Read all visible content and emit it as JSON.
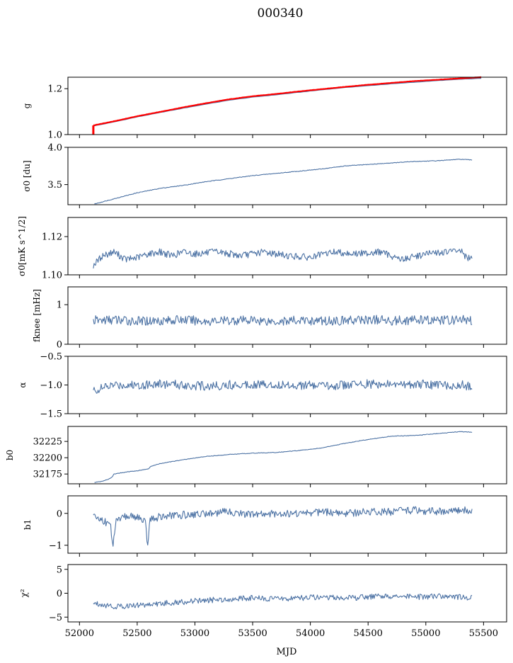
{
  "figure": {
    "title": "000340",
    "xlabel": "MJD"
  },
  "colors": {
    "series": "#4c72a4",
    "highlight": "#ff0000"
  },
  "chart_data": [
    {
      "type": "line",
      "ylabel": "g",
      "xlim": [
        51900,
        55700
      ],
      "ylim": [
        1.0,
        1.25
      ],
      "yticks": [
        1.0,
        1.2
      ],
      "ytick_labels": [
        "1.0",
        "1.2"
      ],
      "series": [
        {
          "role": "main",
          "color": "#4c72a4",
          "x": [
            52120,
            52300,
            52500,
            52700,
            52900,
            53100,
            53300,
            53500,
            53700,
            53900,
            54100,
            54300,
            54500,
            54700,
            54900,
            55100,
            55300,
            55480
          ],
          "y": [
            1.037,
            1.055,
            1.077,
            1.096,
            1.115,
            1.133,
            1.15,
            1.163,
            1.173,
            1.184,
            1.195,
            1.205,
            1.213,
            1.221,
            1.228,
            1.235,
            1.241,
            1.245
          ]
        },
        {
          "role": "highlight",
          "color": "#ff0000",
          "x": [
            52120,
            52300,
            52500,
            52700,
            52900,
            53100,
            53300,
            53500,
            53700,
            53900,
            54100,
            54300,
            54500,
            54700,
            54900,
            55100,
            55300,
            55480
          ],
          "y": [
            1.04,
            1.058,
            1.08,
            1.099,
            1.119,
            1.137,
            1.154,
            1.167,
            1.177,
            1.188,
            1.198,
            1.208,
            1.217,
            1.225,
            1.233,
            1.239,
            1.245,
            1.25
          ]
        }
      ]
    },
    {
      "type": "line",
      "ylabel": "σ0 [du]",
      "xlim": [
        51900,
        55700
      ],
      "ylim": [
        3.23,
        4.0
      ],
      "yticks": [
        3.5,
        4.0
      ],
      "ytick_labels": [
        "3.5",
        "4.0"
      ],
      "series": [
        {
          "color": "#4c72a4",
          "x": [
            52130,
            52300,
            52500,
            52700,
            52900,
            53100,
            53300,
            53500,
            53700,
            53900,
            54100,
            54300,
            54500,
            54700,
            54900,
            55100,
            55300,
            55400
          ],
          "y": [
            3.24,
            3.31,
            3.39,
            3.45,
            3.49,
            3.54,
            3.58,
            3.62,
            3.65,
            3.68,
            3.71,
            3.75,
            3.77,
            3.79,
            3.81,
            3.82,
            3.84,
            3.83
          ]
        }
      ]
    },
    {
      "type": "line",
      "ylabel": "σ0[mK s^1/2]",
      "xlim": [
        51900,
        55700
      ],
      "ylim": [
        1.1,
        1.13
      ],
      "yticks": [
        1.1,
        1.12
      ],
      "ytick_labels": [
        "1.10",
        "1.12"
      ],
      "series": [
        {
          "color": "#4c72a4",
          "x": [
            52120,
            52200,
            52300,
            52400,
            52500,
            52600,
            52700,
            52800,
            52900,
            53000,
            53200,
            53400,
            53600,
            53800,
            54000,
            54200,
            54400,
            54600,
            54800,
            55000,
            55200,
            55300,
            55350,
            55400
          ],
          "y": [
            1.105,
            1.11,
            1.112,
            1.108,
            1.109,
            1.111,
            1.112,
            1.11,
            1.112,
            1.111,
            1.112,
            1.11,
            1.112,
            1.11,
            1.109,
            1.112,
            1.111,
            1.112,
            1.108,
            1.111,
            1.112,
            1.113,
            1.109,
            1.108
          ]
        }
      ]
    },
    {
      "type": "line",
      "ylabel": "fknee [mHz]",
      "xlim": [
        51900,
        55700
      ],
      "ylim": [
        0,
        1.45
      ],
      "yticks": [
        0,
        1
      ],
      "ytick_labels": [
        "0",
        "1"
      ],
      "series": [
        {
          "color": "#4c72a4",
          "x": [
            52120,
            52300,
            52500,
            52700,
            52900,
            53100,
            53300,
            53500,
            53700,
            53900,
            54100,
            54300,
            54500,
            54700,
            54900,
            55100,
            55300,
            55400
          ],
          "y": [
            0.6,
            0.62,
            0.58,
            0.6,
            0.62,
            0.58,
            0.6,
            0.61,
            0.58,
            0.6,
            0.59,
            0.6,
            0.62,
            0.6,
            0.61,
            0.6,
            0.62,
            0.6
          ]
        }
      ]
    },
    {
      "type": "line",
      "ylabel": "α",
      "xlim": [
        51900,
        55700
      ],
      "ylim": [
        -1.5,
        -0.5
      ],
      "yticks": [
        -1.5,
        -1.0,
        -0.5
      ],
      "ytick_labels": [
        "−1.5",
        "−1.0",
        "−0.5"
      ],
      "series": [
        {
          "color": "#4c72a4",
          "x": [
            52120,
            52300,
            52500,
            52700,
            52900,
            53100,
            53300,
            53500,
            53700,
            53900,
            54100,
            54300,
            54500,
            54700,
            54900,
            55100,
            55300,
            55400
          ],
          "y": [
            -1.1,
            -1.0,
            -1.0,
            -0.98,
            -1.0,
            -1.02,
            -1.0,
            -0.98,
            -1.0,
            -1.0,
            -1.02,
            -1.0,
            -0.98,
            -1.0,
            -0.98,
            -1.0,
            -1.0,
            -1.02
          ]
        }
      ]
    },
    {
      "type": "line",
      "ylabel": "b0",
      "xlim": [
        51900,
        55700
      ],
      "ylim": [
        32160,
        32248
      ],
      "yticks": [
        32175,
        32200,
        32225
      ],
      "ytick_labels": [
        "32175",
        "32200",
        "32225"
      ],
      "series": [
        {
          "color": "#4c72a4",
          "x": [
            52130,
            52200,
            52250,
            52280,
            52300,
            52400,
            52500,
            52600,
            52620,
            52700,
            52900,
            53100,
            53300,
            53500,
            53700,
            53900,
            54100,
            54300,
            54500,
            54700,
            54900,
            55100,
            55300,
            55400
          ],
          "y": [
            32162,
            32164,
            32167,
            32170,
            32175,
            32178,
            32180,
            32183,
            32187,
            32191,
            32197,
            32202,
            32205,
            32207,
            32208,
            32211,
            32215,
            32222,
            32228,
            32233,
            32234,
            32237,
            32240,
            32239
          ]
        }
      ]
    },
    {
      "type": "line",
      "ylabel": "b1",
      "xlim": [
        51900,
        55700
      ],
      "ylim": [
        -1.25,
        0.55
      ],
      "yticks": [
        -1,
        0
      ],
      "ytick_labels": [
        "−1",
        "0"
      ],
      "series": [
        {
          "color": "#4c72a4",
          "x": [
            52120,
            52200,
            52270,
            52290,
            52310,
            52400,
            52500,
            52570,
            52590,
            52610,
            52700,
            52900,
            53100,
            53300,
            53500,
            53700,
            53900,
            54100,
            54300,
            54500,
            54700,
            54900,
            55100,
            55300,
            55400
          ],
          "y": [
            -0.1,
            -0.2,
            -0.4,
            -1.1,
            -0.3,
            -0.1,
            -0.1,
            -0.3,
            -1.0,
            -0.2,
            -0.1,
            -0.05,
            0.0,
            0.05,
            -0.05,
            0.0,
            0.0,
            0.05,
            0.0,
            0.05,
            0.05,
            0.1,
            0.05,
            0.1,
            0.1
          ]
        }
      ]
    },
    {
      "type": "line",
      "ylabel": "χ²",
      "xlim": [
        51900,
        55700
      ],
      "ylim": [
        -6,
        6
      ],
      "yticks": [
        -5,
        0,
        5
      ],
      "ytick_labels": [
        "−5",
        "0",
        "5"
      ],
      "series": [
        {
          "color": "#4c72a4",
          "x": [
            52120,
            52300,
            52500,
            52700,
            52900,
            53100,
            53300,
            53500,
            53700,
            53900,
            54100,
            54300,
            54500,
            54700,
            54900,
            55100,
            55300,
            55400
          ],
          "y": [
            -2.0,
            -2.8,
            -2.5,
            -2.2,
            -1.8,
            -1.5,
            -1.2,
            -1.0,
            -1.2,
            -1.0,
            -0.8,
            -1.0,
            -0.8,
            -0.6,
            -0.8,
            -0.7,
            -0.8,
            -1.0
          ]
        }
      ]
    }
  ],
  "x_axis": {
    "ticks": [
      52000,
      52500,
      53000,
      53500,
      54000,
      54500,
      55000,
      55500
    ],
    "tick_labels": [
      "52000",
      "52500",
      "53000",
      "53500",
      "54000",
      "54500",
      "55000",
      "55500"
    ]
  }
}
